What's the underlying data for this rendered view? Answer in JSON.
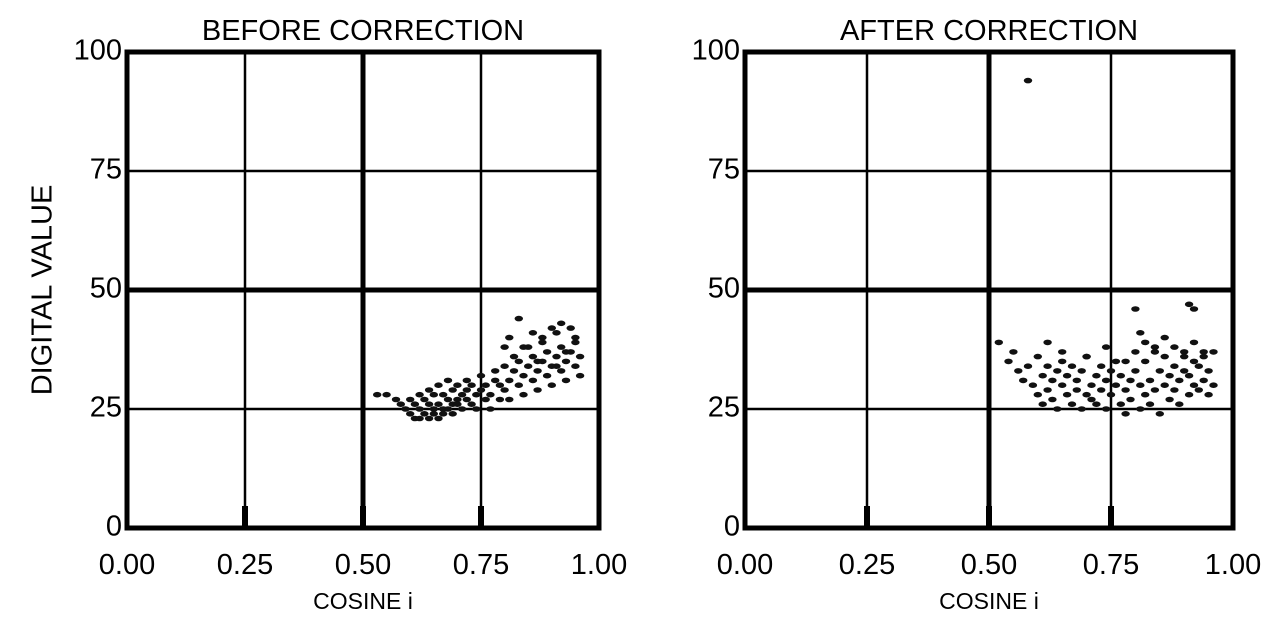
{
  "figure": {
    "shared_ylabel": "DIGITAL VALUE"
  },
  "chart_data": [
    {
      "type": "scatter",
      "title": "BEFORE CORRECTION",
      "xlabel": "COSINE i",
      "ylabel": "DIGITAL VALUE",
      "xlim": [
        0,
        1
      ],
      "ylim": [
        0,
        100
      ],
      "xticks": [
        "0.00",
        "0.25",
        "0.50",
        "0.75",
        "1.00"
      ],
      "yticks": [
        "0",
        "25",
        "50",
        "75",
        "100"
      ],
      "grid": true,
      "points_x": [
        0.53,
        0.55,
        0.57,
        0.58,
        0.59,
        0.6,
        0.6,
        0.61,
        0.61,
        0.62,
        0.62,
        0.62,
        0.63,
        0.63,
        0.64,
        0.64,
        0.64,
        0.65,
        0.65,
        0.65,
        0.66,
        0.66,
        0.66,
        0.67,
        0.67,
        0.67,
        0.68,
        0.68,
        0.68,
        0.69,
        0.69,
        0.69,
        0.7,
        0.7,
        0.7,
        0.71,
        0.71,
        0.72,
        0.72,
        0.72,
        0.73,
        0.73,
        0.74,
        0.74,
        0.75,
        0.75,
        0.76,
        0.76,
        0.77,
        0.77,
        0.78,
        0.78,
        0.79,
        0.79,
        0.8,
        0.8,
        0.81,
        0.81,
        0.82,
        0.82,
        0.83,
        0.83,
        0.84,
        0.84,
        0.85,
        0.85,
        0.86,
        0.86,
        0.87,
        0.87,
        0.88,
        0.88,
        0.89,
        0.89,
        0.9,
        0.9,
        0.91,
        0.91,
        0.92,
        0.92,
        0.93,
        0.93,
        0.94,
        0.94,
        0.95,
        0.95,
        0.96,
        0.96,
        0.8,
        0.81,
        0.83,
        0.86,
        0.88,
        0.9,
        0.92,
        0.93,
        0.95,
        0.84,
        0.87,
        0.91
      ],
      "points_y": [
        28,
        28,
        27,
        26,
        25,
        24,
        27,
        23,
        26,
        25,
        28,
        23,
        24,
        27,
        26,
        29,
        23,
        25,
        28,
        24,
        26,
        30,
        23,
        25,
        28,
        24,
        27,
        31,
        25,
        26,
        29,
        24,
        27,
        30,
        26,
        28,
        25,
        29,
        31,
        27,
        26,
        30,
        28,
        25,
        29,
        32,
        27,
        30,
        28,
        25,
        31,
        33,
        27,
        30,
        29,
        34,
        31,
        27,
        33,
        36,
        30,
        35,
        32,
        28,
        34,
        38,
        31,
        36,
        33,
        29,
        35,
        40,
        32,
        37,
        34,
        30,
        36,
        41,
        33,
        38,
        35,
        31,
        37,
        42,
        34,
        39,
        36,
        32,
        38,
        40,
        44,
        41,
        39,
        42,
        43,
        37,
        40,
        38,
        35,
        34,
        36,
        49
      ]
    },
    {
      "type": "scatter",
      "title": "AFTER CORRECTION",
      "xlabel": "COSINE i",
      "ylabel": "",
      "xlim": [
        0,
        1
      ],
      "ylim": [
        0,
        100
      ],
      "xticks": [
        "0.00",
        "0.25",
        "0.50",
        "0.75",
        "1.00"
      ],
      "yticks": [
        "0",
        "25",
        "50",
        "75",
        "100"
      ],
      "grid": true,
      "points_x": [
        0.52,
        0.54,
        0.55,
        0.56,
        0.57,
        0.58,
        0.59,
        0.6,
        0.6,
        0.61,
        0.61,
        0.62,
        0.62,
        0.63,
        0.63,
        0.64,
        0.64,
        0.65,
        0.65,
        0.66,
        0.66,
        0.67,
        0.67,
        0.68,
        0.68,
        0.69,
        0.69,
        0.7,
        0.7,
        0.71,
        0.71,
        0.72,
        0.72,
        0.73,
        0.73,
        0.74,
        0.74,
        0.75,
        0.75,
        0.76,
        0.76,
        0.77,
        0.77,
        0.78,
        0.78,
        0.79,
        0.79,
        0.8,
        0.8,
        0.81,
        0.81,
        0.82,
        0.82,
        0.83,
        0.83,
        0.84,
        0.84,
        0.85,
        0.85,
        0.86,
        0.86,
        0.87,
        0.87,
        0.88,
        0.88,
        0.89,
        0.89,
        0.9,
        0.9,
        0.91,
        0.91,
        0.92,
        0.92,
        0.93,
        0.93,
        0.94,
        0.94,
        0.95,
        0.95,
        0.96,
        0.96,
        0.62,
        0.65,
        0.7,
        0.74,
        0.78,
        0.82,
        0.84,
        0.86,
        0.88,
        0.9,
        0.92,
        0.94,
        0.58,
        0.8,
        0.81,
        0.91,
        0.92
      ],
      "points_y": [
        39,
        35,
        37,
        33,
        31,
        34,
        30,
        36,
        28,
        32,
        26,
        34,
        29,
        31,
        27,
        33,
        25,
        30,
        35,
        28,
        32,
        26,
        34,
        29,
        31,
        25,
        33,
        28,
        36,
        27,
        30,
        32,
        26,
        29,
        34,
        31,
        25,
        28,
        33,
        30,
        35,
        26,
        32,
        29,
        24,
        31,
        27,
        33,
        37,
        30,
        25,
        35,
        28,
        31,
        26,
        38,
        29,
        33,
        24,
        30,
        36,
        32,
        27,
        34,
        29,
        31,
        26,
        33,
        37,
        28,
        32,
        30,
        35,
        29,
        34,
        31,
        36,
        28,
        33,
        30,
        37,
        39,
        37,
        36,
        38,
        35,
        39,
        37,
        40,
        38,
        36,
        39,
        37,
        94,
        46,
        41,
        47,
        46
      ]
    }
  ]
}
